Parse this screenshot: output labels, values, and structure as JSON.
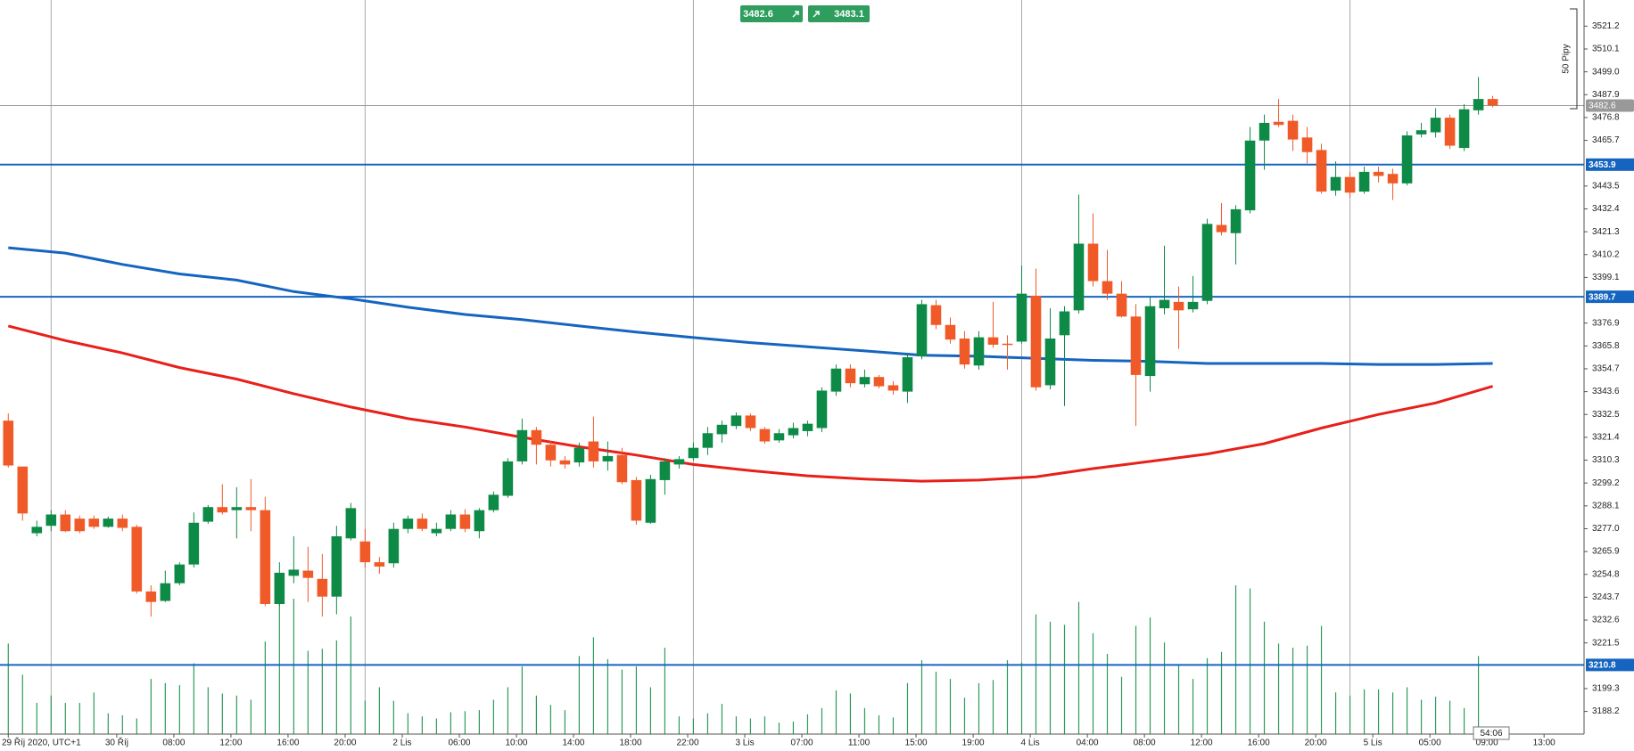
{
  "chart_data": {
    "type": "candlestick",
    "xlim": [
      -0.58,
      110.4
    ],
    "ylim": [
      3177.2,
      3533.9
    ],
    "xticks": [
      {
        "value": 0,
        "label": "29 Říj 2020, UTC+1"
      },
      {
        "value": 7.6,
        "label": "30 Říj"
      },
      {
        "value": 11.6,
        "label": "08:00"
      },
      {
        "value": 15.6,
        "label": "12:00"
      },
      {
        "value": 19.6,
        "label": "16:00"
      },
      {
        "value": 23.6,
        "label": "20:00"
      },
      {
        "value": 27.6,
        "label": "2 Lis"
      },
      {
        "value": 31.6,
        "label": "06:00"
      },
      {
        "value": 35.6,
        "label": "10:00"
      },
      {
        "value": 39.6,
        "label": "14:00"
      },
      {
        "value": 43.6,
        "label": "18:00"
      },
      {
        "value": 47.6,
        "label": "22:00"
      },
      {
        "value": 51.6,
        "label": "3 Lis"
      },
      {
        "value": 55.6,
        "label": "07:00"
      },
      {
        "value": 59.6,
        "label": "11:00"
      },
      {
        "value": 63.6,
        "label": "15:00"
      },
      {
        "value": 67.6,
        "label": "19:00"
      },
      {
        "value": 71.6,
        "label": "4 Lis"
      },
      {
        "value": 75.6,
        "label": "04:00"
      },
      {
        "value": 79.6,
        "label": "08:00"
      },
      {
        "value": 83.6,
        "label": "12:00"
      },
      {
        "value": 87.6,
        "label": "16:00"
      },
      {
        "value": 91.6,
        "label": "20:00"
      },
      {
        "value": 95.6,
        "label": "5 Lis"
      },
      {
        "value": 99.6,
        "label": "05:00"
      },
      {
        "value": 103.6,
        "label": "09:00"
      },
      {
        "value": 107.6,
        "label": "13:00"
      }
    ],
    "yticks": [
      3521.2,
      3510.1,
      {
        "value": 3499,
        "label": "3499.0"
      },
      3487.9,
      3476.8,
      3465.7,
      3443.5,
      3432.4,
      3421.3,
      3410.2,
      3399.1,
      3376.9,
      3365.8,
      3354.7,
      3343.6,
      3332.5,
      3321.4,
      3310.3,
      3299.2,
      3288.1,
      {
        "value": 3277,
        "label": "3277.0"
      },
      3265.9,
      3254.8,
      3243.7,
      3232.6,
      3221.5,
      3199.3,
      3188.2
    ],
    "session_breaks": [
      3,
      25,
      48,
      71,
      94
    ],
    "candles": {
      "up_color": "#0e8a47",
      "down_color": "#f05a28",
      "open": [
        3329.5,
        3307.2,
        3274.8,
        3278.4,
        3283.9,
        3281.9,
        3281.9,
        3277.9,
        3281.9,
        3277.9,
        3246.5,
        3241.9,
        3250.5,
        3259.6,
        3280.4,
        3287.5,
        3286.0,
        3287.5,
        3286.0,
        3240.4,
        3254.1,
        3256.6,
        3252.6,
        3244.0,
        3272.3,
        3270.8,
        3260.7,
        3260.2,
        3276.9,
        3281.9,
        3274.8,
        3276.9,
        3283.9,
        3275.8,
        3286.0,
        3293.0,
        3309.7,
        3324.9,
        3317.8,
        3310.2,
        3309.2,
        3319.4,
        3309.7,
        3312.8,
        3300.6,
        3279.9,
        3300.6,
        3308.2,
        3311.3,
        3316.3,
        3322.9,
        3326.9,
        3332.0,
        3325.4,
        3319.9,
        3322.4,
        3324.4,
        3325.9,
        3343.6,
        3354.8,
        3347.2,
        3350.7,
        3346.7,
        3343.6,
        3360.8,
        3385.6,
        3376.0,
        3369.4,
        3356.3,
        3370.0,
        3366.9,
        3367.9,
        3390.2,
        3346.7,
        3371.0,
        3383.1,
        3415.5,
        3397.3,
        3391.2,
        3380.1,
        3351.2,
        3384.1,
        3387.2,
        3383.6,
        3387.7,
        3424.6,
        3420.6,
        3431.7,
        3465.6,
        3474.7,
        3475.2,
        3467.1,
        3461.0,
        3441.3,
        3447.9,
        3440.8,
        3450.4,
        3449.4,
        3444.8,
        3468.6,
        3469.6,
        3476.7,
        3462.0,
        3480.3,
        3485.8
      ],
      "high": [
        3333.0,
        3307.2,
        3280.9,
        3286.0,
        3286.0,
        3283.4,
        3283.4,
        3282.9,
        3283.9,
        3278.9,
        3249.5,
        3256.6,
        3260.7,
        3284.9,
        3288.5,
        3298.6,
        3297.1,
        3301.1,
        3292.5,
        3260.7,
        3273.3,
        3268.2,
        3264.7,
        3278.4,
        3289.5,
        3276.9,
        3263.2,
        3279.9,
        3283.4,
        3284.4,
        3279.9,
        3286.0,
        3286.5,
        3287.0,
        3295.1,
        3311.3,
        3330.5,
        3326.4,
        3319.4,
        3312.3,
        3318.8,
        3331.5,
        3319.4,
        3316.3,
        3302.2,
        3303.2,
        3311.3,
        3312.3,
        3318.8,
        3326.4,
        3329.5,
        3333.5,
        3333.0,
        3326.4,
        3325.4,
        3328.5,
        3329.5,
        3345.7,
        3356.8,
        3356.8,
        3354.3,
        3351.7,
        3348.7,
        3361.9,
        3388.2,
        3388.2,
        3379.6,
        3373.0,
        3373.0,
        3387.2,
        3371.0,
        3404.9,
        3403.4,
        3384.1,
        3385.1,
        3439.3,
        3430.2,
        3412.5,
        3397.3,
        3386.1,
        3389.7,
        3414.5,
        3394.7,
        3399.8,
        3427.6,
        3435.2,
        3434.2,
        3472.2,
        3478.2,
        3485.8,
        3478.2,
        3472.2,
        3464.1,
        3455.5,
        3450.4,
        3452.9,
        3452.9,
        3451.9,
        3470.1,
        3474.2,
        3481.3,
        3478.2,
        3483.3,
        3496.5,
        3487.3
      ],
      "low": [
        3306.7,
        3280.9,
        3273.3,
        3275.8,
        3275.3,
        3274.8,
        3276.9,
        3277.4,
        3275.8,
        3245.5,
        3234.3,
        3241.4,
        3249.5,
        3258.1,
        3279.4,
        3283.9,
        3272.3,
        3275.8,
        3239.4,
        3239.4,
        3250.5,
        3241.4,
        3234.3,
        3235.4,
        3271.3,
        3258.1,
        3255.1,
        3258.1,
        3274.8,
        3275.8,
        3273.3,
        3275.8,
        3275.3,
        3272.3,
        3284.9,
        3292.0,
        3308.2,
        3308.2,
        3307.2,
        3306.2,
        3307.2,
        3306.7,
        3305.2,
        3298.6,
        3278.9,
        3279.4,
        3293.5,
        3306.2,
        3310.2,
        3312.8,
        3318.8,
        3325.4,
        3324.4,
        3318.3,
        3318.8,
        3320.9,
        3321.9,
        3323.9,
        3341.6,
        3345.7,
        3345.7,
        3345.2,
        3342.1,
        3338.1,
        3359.3,
        3374.0,
        3366.9,
        3354.8,
        3354.3,
        3364.9,
        3354.3,
        3366.9,
        3344.1,
        3344.7,
        3336.6,
        3381.6,
        3394.7,
        3388.2,
        3379.6,
        3326.9,
        3343.6,
        3381.1,
        3364.4,
        3382.1,
        3386.1,
        3419.5,
        3405.4,
        3430.2,
        3451.4,
        3472.2,
        3460.5,
        3454.5,
        3439.8,
        3438.8,
        3437.8,
        3439.8,
        3445.3,
        3436.7,
        3443.8,
        3467.1,
        3467.1,
        3461.5,
        3460.5,
        3478.2,
        3481.8
      ],
      "close": [
        3307.7,
        3284.4,
        3277.9,
        3283.9,
        3275.8,
        3275.8,
        3277.9,
        3281.9,
        3277.4,
        3246.5,
        3241.4,
        3250.5,
        3259.6,
        3279.9,
        3287.5,
        3284.9,
        3287.5,
        3286.0,
        3240.4,
        3255.6,
        3257.1,
        3253.1,
        3244.0,
        3273.3,
        3287.0,
        3260.7,
        3258.6,
        3276.9,
        3281.9,
        3276.9,
        3276.9,
        3283.9,
        3276.9,
        3286.0,
        3293.5,
        3309.7,
        3324.9,
        3317.8,
        3310.2,
        3308.2,
        3316.3,
        3309.7,
        3312.3,
        3299.6,
        3280.9,
        3301.1,
        3309.7,
        3310.8,
        3316.3,
        3323.4,
        3327.5,
        3332.0,
        3325.9,
        3319.4,
        3323.4,
        3325.9,
        3328.0,
        3344.1,
        3354.8,
        3347.7,
        3350.7,
        3346.2,
        3344.1,
        3360.3,
        3386.1,
        3376.0,
        3368.9,
        3356.8,
        3370.0,
        3366.4,
        3366.4,
        3391.2,
        3345.7,
        3369.4,
        3382.6,
        3415.5,
        3397.3,
        3391.2,
        3380.1,
        3351.7,
        3385.1,
        3388.2,
        3383.1,
        3387.2,
        3425.1,
        3421.1,
        3432.2,
        3465.6,
        3474.2,
        3473.2,
        3466.1,
        3460.0,
        3440.8,
        3447.9,
        3440.3,
        3450.4,
        3448.4,
        3444.8,
        3468.1,
        3470.6,
        3476.7,
        3463.1,
        3480.8,
        3485.8,
        3482.6
      ]
    },
    "volume": {
      "color": "#2e9a5a",
      "values": [
        87,
        57,
        30,
        37,
        30,
        30,
        40,
        20,
        18,
        15,
        53,
        49,
        47,
        68,
        45,
        39,
        37,
        33,
        89,
        125,
        130,
        80,
        82,
        90,
        113,
        32,
        45,
        32,
        20,
        17,
        15,
        21,
        22,
        23,
        33,
        45,
        65,
        37,
        28,
        23,
        75,
        93,
        72,
        62,
        65,
        45,
        83,
        17,
        15,
        20,
        29,
        17,
        15,
        17,
        11,
        12,
        19,
        25,
        42,
        39,
        25,
        18,
        16,
        49,
        71,
        60,
        53,
        35,
        49,
        52,
        71,
        69,
        115,
        108,
        105,
        127,
        97,
        77,
        55,
        104,
        112,
        88,
        66,
        53,
        73,
        79,
        143,
        140,
        108,
        87,
        83,
        85,
        104,
        40,
        37,
        43,
        43,
        40,
        45,
        33,
        36,
        32,
        25,
        75,
        5
      ]
    },
    "lines": [
      {
        "color": "#1565c0",
        "x": [
          0,
          4,
          8,
          12,
          16,
          20,
          24,
          28,
          32,
          36,
          40,
          44,
          48,
          52,
          56,
          60,
          64,
          68,
          72,
          76,
          80,
          84,
          88,
          92,
          96,
          100,
          104
        ],
        "values": [
          3413.5,
          3410.9,
          3405.4,
          3400.8,
          3397.8,
          3392.2,
          3388.7,
          3384.6,
          3381.1,
          3378.6,
          3375.5,
          3372.5,
          3369.9,
          3367.4,
          3365.4,
          3363.4,
          3361.3,
          3360.8,
          3359.8,
          3358.8,
          3358.3,
          3357.3,
          3357.3,
          3357.3,
          3356.8,
          3356.8,
          3357.3
        ]
      },
      {
        "color": "#e8201a",
        "x": [
          0,
          4,
          8,
          12,
          16,
          20,
          24,
          28,
          32,
          36,
          40,
          44,
          48,
          52,
          56,
          60,
          64,
          68,
          72,
          76,
          80,
          84,
          88,
          92,
          96,
          100,
          104
        ],
        "values": [
          3375.5,
          3368.4,
          3362.4,
          3355.3,
          3349.7,
          3342.6,
          3336.1,
          3330.5,
          3326.4,
          3321.4,
          3316.8,
          3312.8,
          3308.2,
          3305.2,
          3302.7,
          3301.1,
          3300.1,
          3300.6,
          3302.2,
          3306.2,
          3309.7,
          3313.3,
          3318.3,
          3325.9,
          3332.5,
          3338.1,
          3346.2
        ]
      }
    ],
    "levels": [
      {
        "value": 3453.9,
        "color": "#1565c0"
      },
      {
        "value": 3389.7,
        "color": "#1565c0"
      },
      {
        "value": 3210.8,
        "color": "#1565c0"
      }
    ],
    "current_price": 3482.6,
    "current_color": "#999999",
    "range_label": "50 Pipy",
    "candle_timer": "54:06"
  },
  "trade_buttons": {
    "sell": "3482.6",
    "buy": "3483.1"
  }
}
